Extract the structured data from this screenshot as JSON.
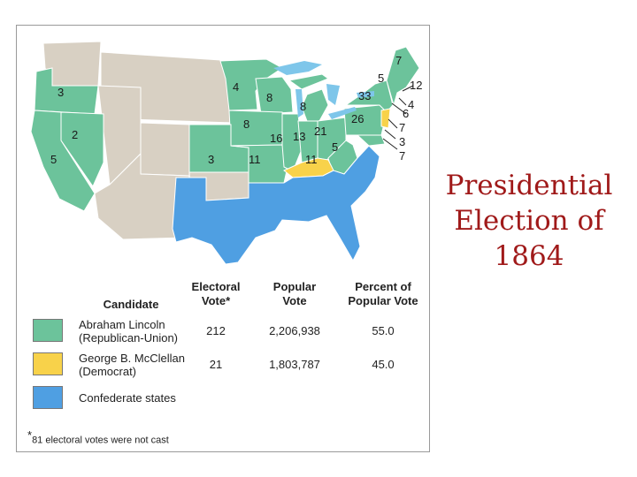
{
  "slide": {
    "title_lines": [
      "Presidential",
      "Election of",
      "1864"
    ]
  },
  "map": {
    "colors": {
      "lincoln": "#6cc39b",
      "mcclellan": "#f8d24a",
      "confederate": "#4f9fe2",
      "territory": "#d8d0c3",
      "water": "#ffffff",
      "lake": "#7ec6ea",
      "border": "#ffffff"
    },
    "vote_labels": [
      "3",
      "2",
      "5",
      "4",
      "8",
      "8",
      "8",
      "16",
      "13",
      "21",
      "26",
      "5",
      "3",
      "11",
      "11",
      "33",
      "7",
      "5",
      "12",
      "4",
      "6",
      "7",
      "3",
      "7"
    ]
  },
  "legend": {
    "headers": {
      "candidate": "Candidate",
      "electoral_line1": "Electoral",
      "electoral_line2": "Vote*",
      "popular_line1": "Popular",
      "popular_line2": "Vote",
      "percent_line1": "Percent of",
      "percent_line2": "Popular Vote"
    },
    "rows": [
      {
        "swatch": "lincoln",
        "name": "Abraham Lincoln",
        "party": "(Republican-Union)",
        "electoral": "212",
        "popular": "2,206,938",
        "percent": "55.0"
      },
      {
        "swatch": "mcclellan",
        "name": "George B. McClellan",
        "party": "(Democrat)",
        "electoral": "21",
        "popular": "1,803,787",
        "percent": "45.0"
      },
      {
        "swatch": "confederate",
        "name": "Confederate states",
        "party": "",
        "electoral": "",
        "popular": "",
        "percent": ""
      }
    ],
    "footnote_mark": "*",
    "footnote": "81 electoral votes were not cast"
  }
}
